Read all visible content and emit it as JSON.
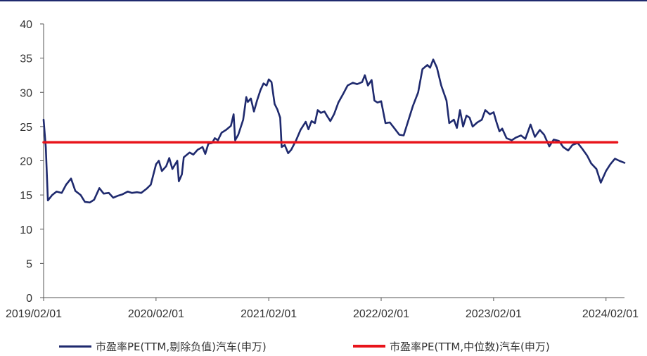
{
  "chart_data": {
    "type": "line",
    "title": "",
    "xlabel": "",
    "ylabel": "",
    "ylim": [
      0,
      40
    ],
    "yticks": [
      0,
      5,
      10,
      15,
      20,
      25,
      30,
      35,
      40
    ],
    "xlim": [
      "2019-02-01",
      "2024-04-01"
    ],
    "xtick_labels": [
      "2019/02/01",
      "2020/02/01",
      "2021/02/01",
      "2022/02/01",
      "2023/02/01",
      "2024/02/01"
    ],
    "grid": false,
    "legend_position": "bottom",
    "series": [
      {
        "name": "市盈率PE(TTM,剔除负值)汽车(申万)",
        "color": "#1f2a6e",
        "points": [
          [
            "2019-02-01",
            26.0
          ],
          [
            "2019-02-08",
            22.0
          ],
          [
            "2019-02-15",
            14.2
          ],
          [
            "2019-03-01",
            15.0
          ],
          [
            "2019-03-15",
            15.5
          ],
          [
            "2019-04-01",
            15.3
          ],
          [
            "2019-04-15",
            16.5
          ],
          [
            "2019-05-01",
            17.4
          ],
          [
            "2019-05-15",
            15.6
          ],
          [
            "2019-06-01",
            15.0
          ],
          [
            "2019-06-15",
            14.0
          ],
          [
            "2019-07-01",
            13.9
          ],
          [
            "2019-07-15",
            14.3
          ],
          [
            "2019-08-01",
            16.0
          ],
          [
            "2019-08-15",
            15.2
          ],
          [
            "2019-09-01",
            15.3
          ],
          [
            "2019-09-15",
            14.6
          ],
          [
            "2019-10-01",
            14.9
          ],
          [
            "2019-10-15",
            15.1
          ],
          [
            "2019-11-01",
            15.5
          ],
          [
            "2019-11-15",
            15.3
          ],
          [
            "2019-12-01",
            15.4
          ],
          [
            "2019-12-15",
            15.3
          ],
          [
            "2020-01-01",
            15.9
          ],
          [
            "2020-01-15",
            16.5
          ],
          [
            "2020-02-01",
            19.5
          ],
          [
            "2020-02-10",
            20.0
          ],
          [
            "2020-02-20",
            18.5
          ],
          [
            "2020-03-05",
            19.2
          ],
          [
            "2020-03-15",
            20.4
          ],
          [
            "2020-03-25",
            18.8
          ],
          [
            "2020-04-10",
            20.0
          ],
          [
            "2020-04-15",
            17.0
          ],
          [
            "2020-04-25",
            18.0
          ],
          [
            "2020-05-01",
            20.5
          ],
          [
            "2020-05-20",
            21.2
          ],
          [
            "2020-06-01",
            20.9
          ],
          [
            "2020-06-15",
            21.6
          ],
          [
            "2020-07-01",
            22.0
          ],
          [
            "2020-07-10",
            21.0
          ],
          [
            "2020-07-20",
            22.5
          ],
          [
            "2020-08-01",
            22.6
          ],
          [
            "2020-08-10",
            23.3
          ],
          [
            "2020-08-20",
            23.0
          ],
          [
            "2020-09-01",
            24.1
          ],
          [
            "2020-09-15",
            24.5
          ],
          [
            "2020-10-01",
            25.1
          ],
          [
            "2020-10-10",
            26.8
          ],
          [
            "2020-10-15",
            23.0
          ],
          [
            "2020-10-25",
            23.8
          ],
          [
            "2020-11-10",
            26.0
          ],
          [
            "2020-11-20",
            29.3
          ],
          [
            "2020-11-25",
            28.6
          ],
          [
            "2020-12-05",
            29.1
          ],
          [
            "2020-12-15",
            27.2
          ],
          [
            "2020-12-25",
            28.8
          ],
          [
            "2021-01-05",
            30.3
          ],
          [
            "2021-01-15",
            31.3
          ],
          [
            "2021-01-25",
            31.0
          ],
          [
            "2021-02-01",
            31.9
          ],
          [
            "2021-02-10",
            31.5
          ],
          [
            "2021-02-20",
            28.3
          ],
          [
            "2021-03-01",
            27.5
          ],
          [
            "2021-03-10",
            26.3
          ],
          [
            "2021-03-15",
            22.0
          ],
          [
            "2021-03-25",
            22.3
          ],
          [
            "2021-04-05",
            21.1
          ],
          [
            "2021-04-15",
            21.6
          ],
          [
            "2021-05-01",
            23.0
          ],
          [
            "2021-05-15",
            24.5
          ],
          [
            "2021-06-01",
            25.7
          ],
          [
            "2021-06-10",
            24.6
          ],
          [
            "2021-06-20",
            25.8
          ],
          [
            "2021-07-01",
            25.5
          ],
          [
            "2021-07-10",
            27.4
          ],
          [
            "2021-07-20",
            27.0
          ],
          [
            "2021-08-01",
            27.2
          ],
          [
            "2021-08-10",
            26.5
          ],
          [
            "2021-08-20",
            25.8
          ],
          [
            "2021-09-01",
            26.8
          ],
          [
            "2021-09-15",
            28.5
          ],
          [
            "2021-10-01",
            29.8
          ],
          [
            "2021-10-15",
            31.0
          ],
          [
            "2021-11-01",
            31.4
          ],
          [
            "2021-11-15",
            31.2
          ],
          [
            "2021-12-01",
            31.5
          ],
          [
            "2021-12-10",
            32.5
          ],
          [
            "2021-12-20",
            31.0
          ],
          [
            "2022-01-01",
            31.8
          ],
          [
            "2022-01-10",
            28.8
          ],
          [
            "2022-01-20",
            28.5
          ],
          [
            "2022-02-01",
            28.7
          ],
          [
            "2022-02-15",
            25.5
          ],
          [
            "2022-03-01",
            25.6
          ],
          [
            "2022-03-15",
            24.8
          ],
          [
            "2022-04-01",
            23.8
          ],
          [
            "2022-04-15",
            23.7
          ],
          [
            "2022-05-01",
            26.0
          ],
          [
            "2022-05-15",
            28.0
          ],
          [
            "2022-06-01",
            30.0
          ],
          [
            "2022-06-15",
            33.4
          ],
          [
            "2022-07-01",
            34.0
          ],
          [
            "2022-07-10",
            33.6
          ],
          [
            "2022-07-20",
            34.8
          ],
          [
            "2022-08-01",
            33.6
          ],
          [
            "2022-08-15",
            31.0
          ],
          [
            "2022-09-01",
            28.8
          ],
          [
            "2022-09-10",
            25.5
          ],
          [
            "2022-09-25",
            26.0
          ],
          [
            "2022-10-05",
            24.8
          ],
          [
            "2022-10-15",
            27.4
          ],
          [
            "2022-10-25",
            25.0
          ],
          [
            "2022-11-05",
            26.6
          ],
          [
            "2022-11-15",
            26.3
          ],
          [
            "2022-11-25",
            25.0
          ],
          [
            "2022-12-10",
            25.6
          ],
          [
            "2022-12-25",
            26.0
          ],
          [
            "2023-01-05",
            27.4
          ],
          [
            "2023-01-20",
            26.8
          ],
          [
            "2023-02-01",
            27.1
          ],
          [
            "2023-02-10",
            25.7
          ],
          [
            "2023-02-20",
            24.3
          ],
          [
            "2023-03-01",
            24.7
          ],
          [
            "2023-03-15",
            23.3
          ],
          [
            "2023-04-01",
            23.0
          ],
          [
            "2023-04-15",
            23.4
          ],
          [
            "2023-05-01",
            23.7
          ],
          [
            "2023-05-15",
            23.2
          ],
          [
            "2023-06-01",
            25.3
          ],
          [
            "2023-06-15",
            23.5
          ],
          [
            "2023-07-01",
            24.5
          ],
          [
            "2023-07-15",
            23.8
          ],
          [
            "2023-08-01",
            22.1
          ],
          [
            "2023-08-15",
            23.1
          ],
          [
            "2023-09-01",
            22.9
          ],
          [
            "2023-09-15",
            22.0
          ],
          [
            "2023-10-01",
            21.5
          ],
          [
            "2023-10-15",
            22.3
          ],
          [
            "2023-11-01",
            22.6
          ],
          [
            "2023-11-15",
            21.8
          ],
          [
            "2023-12-01",
            20.8
          ],
          [
            "2023-12-15",
            19.6
          ],
          [
            "2024-01-01",
            18.8
          ],
          [
            "2024-01-15",
            16.8
          ],
          [
            "2024-02-01",
            18.5
          ],
          [
            "2024-02-15",
            19.5
          ],
          [
            "2024-03-01",
            20.3
          ],
          [
            "2024-03-15",
            20.0
          ],
          [
            "2024-04-01",
            19.7
          ]
        ]
      },
      {
        "name": "市盈率PE(TTM,中位数)汽车(申万)",
        "color": "#e8141b",
        "points": [
          [
            "2019-02-01",
            22.7
          ],
          [
            "2024-03-08",
            22.7
          ]
        ]
      }
    ]
  }
}
